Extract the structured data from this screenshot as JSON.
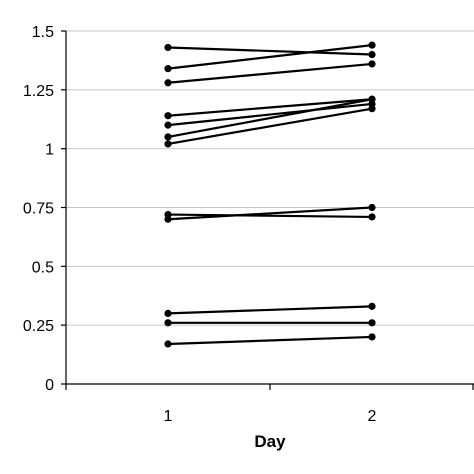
{
  "chart_data": {
    "type": "line",
    "title": "",
    "xlabel": "Day",
    "ylabel": "",
    "x": [
      1,
      2
    ],
    "xlim": [
      0.5,
      2.5
    ],
    "ylim": [
      0,
      1.5
    ],
    "y_ticks": [
      0,
      0.25,
      0.5,
      0.75,
      1,
      1.25,
      1.5
    ],
    "y_tick_labels": [
      "0",
      "0.25",
      "0.5",
      "0.75",
      "1",
      "1.25",
      "1.5"
    ],
    "x_tick_labels": [
      "1",
      "2"
    ],
    "grid": "horizontal",
    "legend": "none",
    "line_color": "#000000",
    "grid_color": "#c8c8c8",
    "series": [
      {
        "values": [
          1.43,
          1.4
        ]
      },
      {
        "values": [
          1.34,
          1.44
        ]
      },
      {
        "values": [
          1.28,
          1.36
        ]
      },
      {
        "values": [
          1.14,
          1.21
        ]
      },
      {
        "values": [
          1.1,
          1.19
        ]
      },
      {
        "values": [
          1.05,
          1.21
        ]
      },
      {
        "values": [
          1.02,
          1.17
        ]
      },
      {
        "values": [
          0.72,
          0.71
        ]
      },
      {
        "values": [
          0.7,
          0.75
        ]
      },
      {
        "values": [
          0.3,
          0.33
        ]
      },
      {
        "values": [
          0.26,
          0.26
        ]
      },
      {
        "values": [
          0.17,
          0.2
        ]
      }
    ]
  }
}
